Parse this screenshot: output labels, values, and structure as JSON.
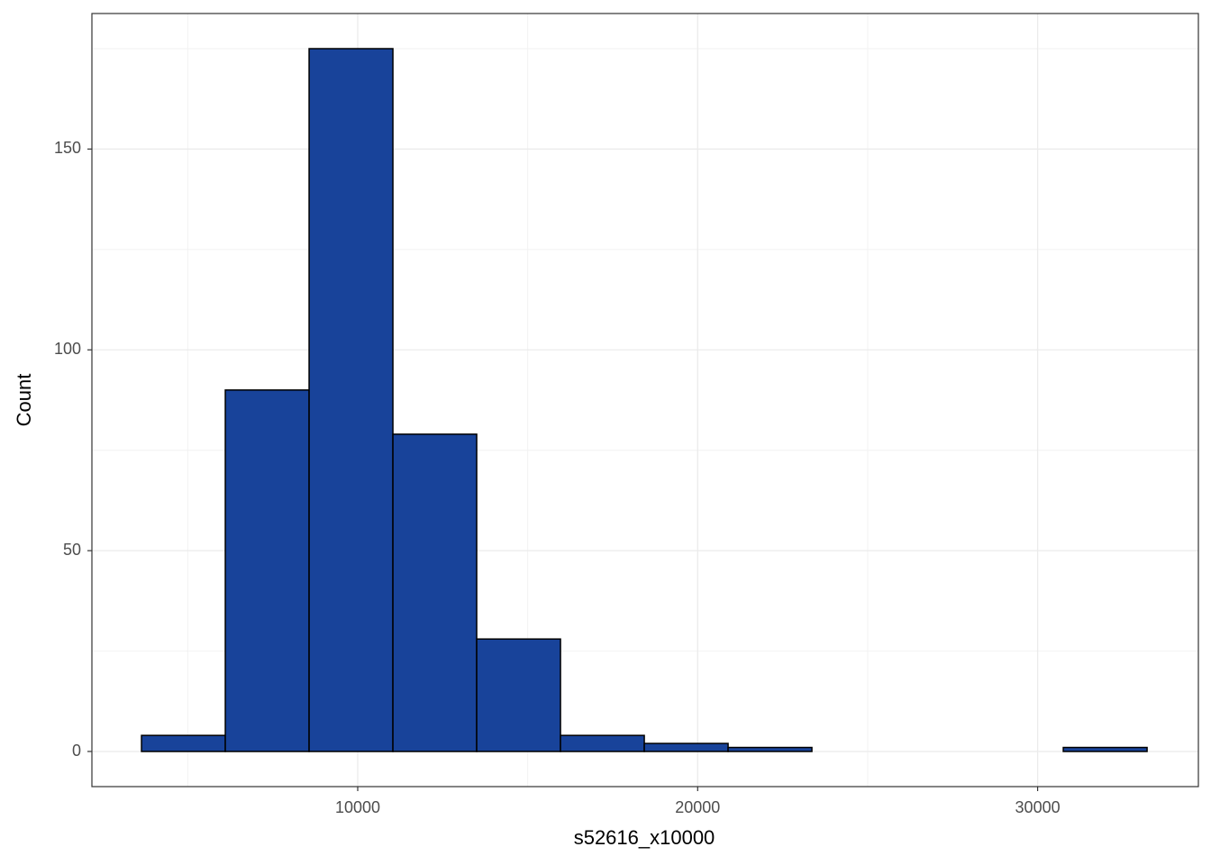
{
  "chart_data": {
    "type": "histogram",
    "x_label": "s52616_x10000",
    "y_label": "Count",
    "bins": [
      3640,
      6105,
      8570,
      11035,
      13500,
      15965,
      18430,
      20895,
      23360,
      25825,
      28290,
      30755,
      33220
    ],
    "values": [
      4,
      90,
      175,
      79,
      28,
      4,
      2,
      1,
      0,
      0,
      0,
      1
    ],
    "color": "#18439a",
    "edge_color": "#000000",
    "xlim": [
      2181,
      34729
    ],
    "ylim": [
      -8.75,
      183.75
    ],
    "xticks": [
      10000,
      20000,
      30000
    ],
    "yticks": [
      0,
      50,
      100,
      150
    ],
    "minor_xticks": [
      5000,
      15000,
      25000
    ],
    "minor_yticks": [
      25,
      75,
      125,
      175
    ],
    "grid": true
  }
}
